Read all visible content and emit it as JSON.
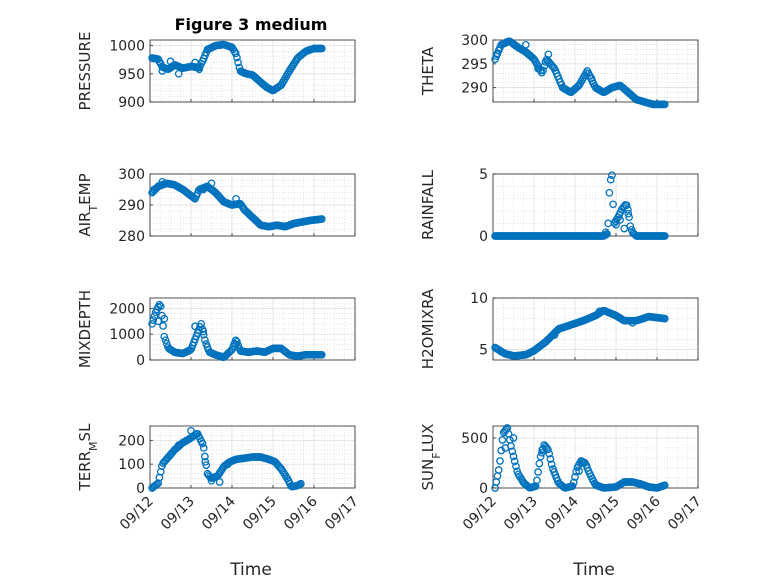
{
  "chart_data": {
    "type": "scatter",
    "title": "Figure 3 medium",
    "marker_color": "#0072BD",
    "marker": "circle",
    "grid": true,
    "x_ticks": [
      "09/12",
      "09/13",
      "09/14",
      "09/15",
      "09/16",
      "09/17"
    ],
    "x_tick_days": [
      12,
      13,
      14,
      15,
      16,
      17
    ],
    "x_start": "09/12",
    "xlabel": "Time",
    "panels": [
      {
        "key": "pressure",
        "ylabel": "PRESSURE",
        "ylim": [
          900,
          1010
        ],
        "yticks": [
          900,
          950,
          1000
        ],
        "column": 0,
        "row": 0,
        "knots": [
          [
            12.05,
            978
          ],
          [
            12.2,
            976
          ],
          [
            12.3,
            962
          ],
          [
            12.45,
            958
          ],
          [
            12.6,
            966
          ],
          [
            12.8,
            960
          ],
          [
            13.0,
            963
          ],
          [
            13.2,
            961
          ],
          [
            13.3,
            975
          ],
          [
            13.4,
            993
          ],
          [
            13.6,
            1000
          ],
          [
            13.8,
            1002
          ],
          [
            14.0,
            997
          ],
          [
            14.1,
            985
          ],
          [
            14.2,
            955
          ],
          [
            14.35,
            950
          ],
          [
            14.5,
            948
          ],
          [
            14.7,
            935
          ],
          [
            14.85,
            926
          ],
          [
            15.0,
            920
          ],
          [
            15.2,
            930
          ],
          [
            15.4,
            955
          ],
          [
            15.6,
            978
          ],
          [
            15.8,
            990
          ],
          [
            16.0,
            995
          ],
          [
            16.2,
            995
          ]
        ],
        "outliers": [
          [
            12.3,
            955
          ],
          [
            12.5,
            972
          ],
          [
            12.7,
            950
          ],
          [
            13.1,
            970
          ],
          [
            13.2,
            958
          ]
        ]
      },
      {
        "key": "theta",
        "ylabel": "THETA",
        "ylim": [
          287,
          300
        ],
        "yticks": [
          290,
          295,
          300
        ],
        "column": 1,
        "row": 0,
        "knots": [
          [
            12.05,
            296
          ],
          [
            12.2,
            299
          ],
          [
            12.4,
            299.8
          ],
          [
            12.6,
            298.5
          ],
          [
            12.8,
            297.5
          ],
          [
            13.0,
            296
          ],
          [
            13.2,
            293
          ],
          [
            13.3,
            296
          ],
          [
            13.5,
            294
          ],
          [
            13.7,
            290
          ],
          [
            13.9,
            289
          ],
          [
            14.1,
            290.5
          ],
          [
            14.3,
            293.5
          ],
          [
            14.5,
            290
          ],
          [
            14.7,
            289
          ],
          [
            14.9,
            290
          ],
          [
            15.1,
            290.5
          ],
          [
            15.3,
            289
          ],
          [
            15.5,
            287.5
          ],
          [
            15.7,
            287
          ],
          [
            15.9,
            286.5
          ],
          [
            16.2,
            286.5
          ]
        ],
        "outliers": [
          [
            12.1,
            297
          ],
          [
            12.8,
            299
          ],
          [
            13.1,
            294
          ],
          [
            13.35,
            297
          ],
          [
            14.4,
            292
          ]
        ]
      },
      {
        "key": "air_temp",
        "ylabel": "AIR_TEMP",
        "ylim": [
          280,
          300
        ],
        "yticks": [
          280,
          290,
          300
        ],
        "column": 0,
        "row": 1,
        "knots": [
          [
            12.05,
            294
          ],
          [
            12.2,
            296
          ],
          [
            12.4,
            297
          ],
          [
            12.6,
            296.5
          ],
          [
            12.8,
            295
          ],
          [
            13.0,
            293
          ],
          [
            13.1,
            292
          ],
          [
            13.2,
            295
          ],
          [
            13.4,
            296
          ],
          [
            13.6,
            294
          ],
          [
            13.8,
            291
          ],
          [
            14.0,
            290
          ],
          [
            14.2,
            290.5
          ],
          [
            14.3,
            288.5
          ],
          [
            14.5,
            286
          ],
          [
            14.7,
            283.5
          ],
          [
            14.9,
            283
          ],
          [
            15.1,
            283.5
          ],
          [
            15.3,
            283
          ],
          [
            15.5,
            284
          ],
          [
            15.7,
            284.5
          ],
          [
            15.9,
            285
          ],
          [
            16.2,
            285.5
          ]
        ],
        "outliers": [
          [
            12.1,
            295
          ],
          [
            12.3,
            297.5
          ],
          [
            13.3,
            295
          ],
          [
            13.5,
            297
          ],
          [
            14.1,
            292
          ]
        ]
      },
      {
        "key": "rainfall",
        "ylabel": "RAINFALL",
        "ylim": [
          0,
          5
        ],
        "yticks": [
          0,
          5
        ],
        "column": 1,
        "row": 1,
        "knots": [
          [
            12.05,
            0
          ],
          [
            14.7,
            0
          ],
          [
            14.8,
            0.2
          ],
          [
            14.85,
            4.3
          ],
          [
            14.9,
            4.9
          ],
          [
            14.95,
            1.0
          ],
          [
            15.05,
            1.5
          ],
          [
            15.15,
            2.2
          ],
          [
            15.25,
            2.6
          ],
          [
            15.3,
            2.0
          ],
          [
            15.35,
            0.8
          ],
          [
            15.4,
            0.3
          ],
          [
            15.5,
            0
          ],
          [
            16.2,
            0
          ]
        ],
        "outliers": [
          [
            14.75,
            0.3
          ],
          [
            15.0,
            0.9
          ],
          [
            15.1,
            1.3
          ],
          [
            15.2,
            0.6
          ],
          [
            15.3,
            1.8
          ]
        ]
      },
      {
        "key": "mixdepth",
        "ylabel": "MIXDEPTH",
        "ylim": [
          0,
          2400
        ],
        "yticks": [
          0,
          1000,
          2000
        ],
        "column": 0,
        "row": 2,
        "knots": [
          [
            12.05,
            1400
          ],
          [
            12.15,
            1900
          ],
          [
            12.25,
            2200
          ],
          [
            12.3,
            1600
          ],
          [
            12.35,
            900
          ],
          [
            12.45,
            450
          ],
          [
            12.6,
            300
          ],
          [
            12.8,
            250
          ],
          [
            13.0,
            400
          ],
          [
            13.15,
            1000
          ],
          [
            13.25,
            1400
          ],
          [
            13.35,
            700
          ],
          [
            13.45,
            300
          ],
          [
            13.6,
            200
          ],
          [
            13.8,
            100
          ],
          [
            14.0,
            400
          ],
          [
            14.1,
            800
          ],
          [
            14.2,
            350
          ],
          [
            14.4,
            300
          ],
          [
            14.6,
            350
          ],
          [
            14.8,
            300
          ],
          [
            15.0,
            450
          ],
          [
            15.2,
            450
          ],
          [
            15.4,
            200
          ],
          [
            15.6,
            150
          ],
          [
            15.8,
            200
          ],
          [
            16.2,
            200
          ]
        ],
        "outliers": [
          [
            12.2,
            1500
          ],
          [
            12.35,
            1600
          ],
          [
            13.1,
            1300
          ],
          [
            13.3,
            1100
          ],
          [
            14.1,
            600
          ]
        ]
      },
      {
        "key": "h2omixra",
        "ylabel": "H2OMIXRA",
        "ylim": [
          4,
          10
        ],
        "yticks": [
          5,
          10
        ],
        "column": 1,
        "row": 2,
        "knots": [
          [
            12.05,
            5.2
          ],
          [
            12.3,
            4.6
          ],
          [
            12.5,
            4.4
          ],
          [
            12.8,
            4.5
          ],
          [
            13.0,
            4.9
          ],
          [
            13.3,
            5.8
          ],
          [
            13.6,
            7.0
          ],
          [
            13.9,
            7.4
          ],
          [
            14.2,
            7.8
          ],
          [
            14.5,
            8.3
          ],
          [
            14.7,
            8.8
          ],
          [
            15.0,
            8.3
          ],
          [
            15.2,
            7.8
          ],
          [
            15.5,
            7.8
          ],
          [
            15.8,
            8.2
          ],
          [
            16.2,
            8.0
          ]
        ],
        "outliers": [
          [
            12.2,
            4.8
          ],
          [
            13.5,
            6.4
          ],
          [
            14.6,
            8.7
          ],
          [
            15.4,
            7.6
          ]
        ]
      },
      {
        "key": "terr_msl",
        "ylabel": "TERR_MSL",
        "ylim": [
          0,
          260
        ],
        "yticks": [
          0,
          100,
          200
        ],
        "column": 0,
        "row": 3,
        "knots": [
          [
            12.05,
            0
          ],
          [
            12.2,
            20
          ],
          [
            12.3,
            100
          ],
          [
            12.45,
            130
          ],
          [
            12.6,
            160
          ],
          [
            12.8,
            190
          ],
          [
            13.0,
            210
          ],
          [
            13.15,
            230
          ],
          [
            13.3,
            180
          ],
          [
            13.4,
            60
          ],
          [
            13.5,
            40
          ],
          [
            13.65,
            50
          ],
          [
            13.8,
            90
          ],
          [
            13.95,
            110
          ],
          [
            14.1,
            120
          ],
          [
            14.3,
            125
          ],
          [
            14.5,
            130
          ],
          [
            14.7,
            130
          ],
          [
            14.9,
            120
          ],
          [
            15.05,
            110
          ],
          [
            15.2,
            80
          ],
          [
            15.35,
            40
          ],
          [
            15.45,
            5
          ],
          [
            15.6,
            10
          ],
          [
            15.7,
            20
          ]
        ],
        "outliers": [
          [
            12.5,
            140
          ],
          [
            12.7,
            180
          ],
          [
            12.9,
            200
          ],
          [
            13.0,
            240
          ],
          [
            13.35,
            110
          ],
          [
            13.5,
            30
          ],
          [
            13.7,
            25
          ],
          [
            13.9,
            100
          ]
        ]
      },
      {
        "key": "sun_flux",
        "ylabel": "SUN_FLUX",
        "ylim": [
          0,
          620
        ],
        "yticks": [
          0,
          500
        ],
        "column": 1,
        "row": 3,
        "knots": [
          [
            12.05,
            0
          ],
          [
            12.15,
            200
          ],
          [
            12.25,
            550
          ],
          [
            12.35,
            600
          ],
          [
            12.45,
            400
          ],
          [
            12.6,
            150
          ],
          [
            12.75,
            50
          ],
          [
            12.9,
            0
          ],
          [
            13.05,
            20
          ],
          [
            13.15,
            300
          ],
          [
            13.25,
            430
          ],
          [
            13.35,
            380
          ],
          [
            13.45,
            200
          ],
          [
            13.6,
            50
          ],
          [
            13.75,
            0
          ],
          [
            13.95,
            20
          ],
          [
            14.05,
            200
          ],
          [
            14.15,
            270
          ],
          [
            14.25,
            250
          ],
          [
            14.35,
            150
          ],
          [
            14.5,
            30
          ],
          [
            14.7,
            0
          ],
          [
            15.0,
            10
          ],
          [
            15.2,
            60
          ],
          [
            15.4,
            60
          ],
          [
            15.6,
            40
          ],
          [
            15.8,
            10
          ],
          [
            16.0,
            0
          ],
          [
            16.2,
            30
          ]
        ],
        "outliers": [
          [
            12.3,
            400
          ],
          [
            12.5,
            500
          ],
          [
            13.2,
            380
          ],
          [
            14.1,
            170
          ]
        ]
      }
    ]
  }
}
